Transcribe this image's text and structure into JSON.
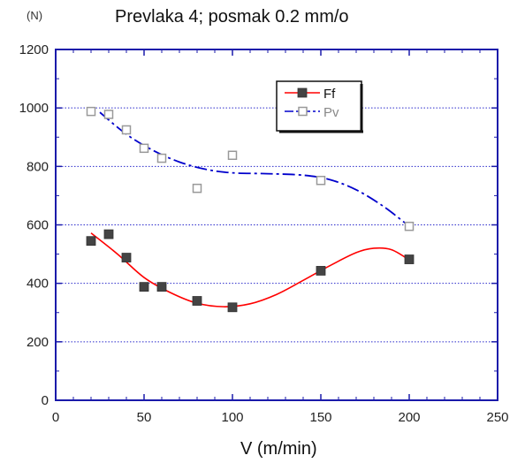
{
  "chart_data": {
    "type": "scatter",
    "title": "Prevlaka 4; posmak 0.2 mm/o",
    "ylabel": "(N)",
    "xlabel": "V (m/min)",
    "xlim": [
      0,
      250
    ],
    "ylim": [
      0,
      1200
    ],
    "xticks": [
      0,
      50,
      100,
      150,
      200,
      250
    ],
    "yticks": [
      0,
      200,
      400,
      600,
      800,
      1000,
      1200
    ],
    "grid": "horizontal dotted",
    "legend_position": "top-right",
    "series": [
      {
        "name": "Ff",
        "marker": "filled-square",
        "color": "#ff0000",
        "marker_color": "#444444",
        "x": [
          20,
          30,
          40,
          50,
          60,
          80,
          100,
          150,
          200
        ],
        "y": [
          545,
          568,
          488,
          388,
          388,
          340,
          318,
          443,
          482
        ],
        "fit_x": [
          20,
          35,
          50,
          65,
          80,
          95,
          110,
          125,
          140,
          155,
          170,
          180,
          190,
          200
        ],
        "fit_y": [
          572,
          500,
          420,
          368,
          332,
          320,
          330,
          362,
          410,
          460,
          505,
          520,
          515,
          480
        ]
      },
      {
        "name": "Pv",
        "marker": "open-square",
        "color": "#0000cc",
        "marker_color": "#999999",
        "x": [
          20,
          30,
          40,
          50,
          60,
          80,
          100,
          150,
          200
        ],
        "y": [
          988,
          978,
          925,
          862,
          828,
          725,
          838,
          752,
          595
        ],
        "fit_x": [
          25,
          40,
          55,
          70,
          85,
          100,
          120,
          140,
          155,
          170,
          185,
          198
        ],
        "fit_y": [
          985,
          910,
          855,
          815,
          790,
          778,
          775,
          770,
          755,
          720,
          665,
          605
        ]
      }
    ]
  }
}
